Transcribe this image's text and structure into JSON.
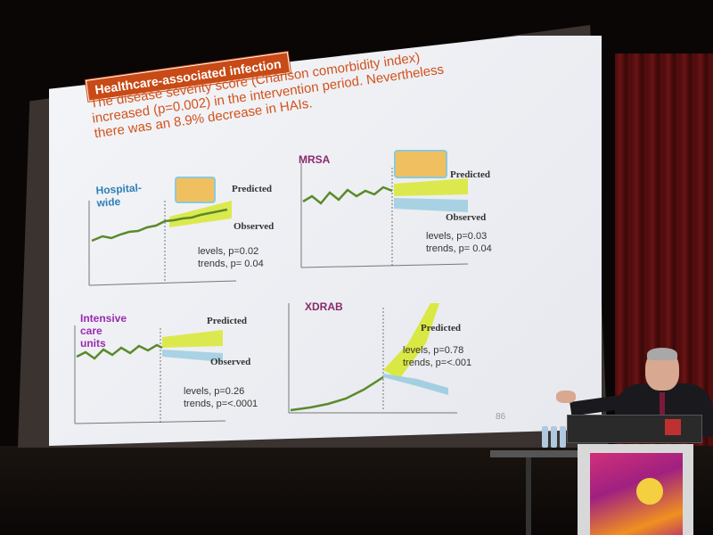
{
  "slide": {
    "banner": "Healthcare-associated infection",
    "subtitle_lines": [
      "The disease severity score (Charlson comorbidity index)",
      "increased (p=0.002) in the intervention period.  Nevertheless",
      "there was an 8.9% decrease in HAIs."
    ],
    "page_number": "86"
  },
  "panels": {
    "hospital_wide": {
      "title": "Hospital-wide",
      "predicted": "Predicted",
      "observed": "Observed",
      "stat_levels": "levels, p=0.02",
      "stat_trends": "trends, p= 0.04"
    },
    "mrsa": {
      "title": "MRSA",
      "predicted": "Predicted",
      "observed": "Observed",
      "stat_levels": "levels, p=0.03",
      "stat_trends": "trends, p= 0.04"
    },
    "icu": {
      "title": "Intensive care units",
      "predicted": "Predicted",
      "observed": "Observed",
      "stat_levels": "levels, p=0.26",
      "stat_trends": "trends, p=<.0001"
    },
    "xdrab": {
      "title": "XDRAB",
      "predicted": "Predicted",
      "stat_levels": "levels, p=0.78",
      "stat_trends": "trends, p=<.001"
    }
  },
  "colors": {
    "banner": "#c84a16",
    "subtitle": "#d2521c",
    "predicted_band": "#d8e830",
    "observed_band": "#9ccce0",
    "series_line": "#5a8a2a"
  },
  "icons": [
    "hand-wash-icon",
    "podium-logo-icon"
  ]
}
